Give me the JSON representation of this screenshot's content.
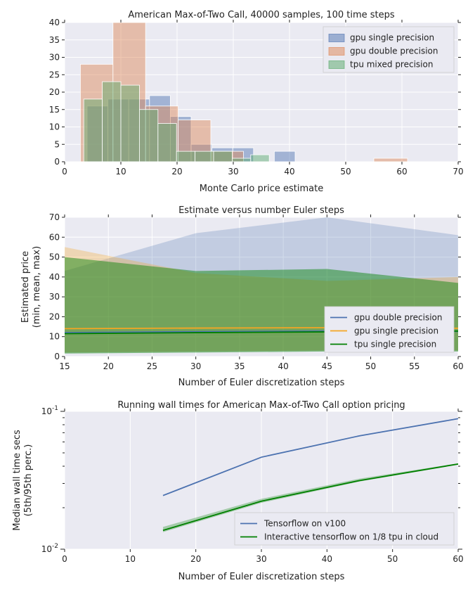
{
  "chart_data": [
    {
      "type": "histogram",
      "title": "American Max-of-Two Call, 40000 samples, 100 time steps",
      "xlabel": "Monte Carlo price estimate",
      "ylabel": "",
      "xlim": [
        0,
        70
      ],
      "ylim": [
        0,
        40
      ],
      "xticks": [
        "0",
        "10",
        "20",
        "30",
        "40",
        "50",
        "60",
        "70"
      ],
      "yticks": [
        "0",
        "5",
        "10",
        "15",
        "20",
        "25",
        "30",
        "35",
        "40"
      ],
      "legend_position": "upper right",
      "series": [
        {
          "name": "gpu single precision",
          "color": "#4c72b0",
          "bins": [
            [
              4,
              7.7,
              16
            ],
            [
              7.7,
              11.4,
              18
            ],
            [
              11.4,
              15.1,
              18
            ],
            [
              15.1,
              18.8,
              19
            ],
            [
              18.8,
              22.5,
              13
            ],
            [
              22.5,
              26.2,
              5
            ],
            [
              26.2,
              29.9,
              4
            ],
            [
              29.9,
              33.6,
              4
            ],
            [
              33.6,
              37.3,
              0
            ],
            [
              37.3,
              41,
              3
            ]
          ]
        },
        {
          "name": "gpu double precision",
          "color": "#dd8452",
          "bins": [
            [
              2.8,
              8.6,
              28
            ],
            [
              8.6,
              14.4,
              40
            ],
            [
              14.4,
              20.2,
              16
            ],
            [
              20.2,
              26,
              12
            ],
            [
              26,
              31.8,
              3
            ],
            [
              31.8,
              37.6,
              0
            ],
            [
              37.6,
              43.4,
              0
            ],
            [
              43.4,
              49.2,
              0
            ],
            [
              49.2,
              55,
              0
            ],
            [
              55,
              61,
              1
            ]
          ]
        },
        {
          "name": "tpu mixed precision",
          "color": "#55a868",
          "bins": [
            [
              3.4,
              6.7,
              18
            ],
            [
              6.7,
              10,
              23
            ],
            [
              10,
              13.3,
              22
            ],
            [
              13.3,
              16.6,
              15
            ],
            [
              16.6,
              19.9,
              11
            ],
            [
              19.9,
              23.2,
              3
            ],
            [
              23.2,
              26.5,
              3
            ],
            [
              26.5,
              29.8,
              3
            ],
            [
              29.8,
              33.1,
              1
            ],
            [
              33.1,
              36.4,
              2
            ]
          ]
        }
      ]
    },
    {
      "type": "area",
      "title": "Estimate versus number Euler steps",
      "xlabel": "Number of Euler discretization steps",
      "ylabel": "Estimated price\n(min, mean, max)",
      "ylabel_lines": [
        "Estimated price",
        "(min, mean, max)"
      ],
      "xlim": [
        15,
        60
      ],
      "ylim": [
        0,
        70
      ],
      "xticks": [
        "15",
        "20",
        "25",
        "30",
        "35",
        "40",
        "45",
        "50",
        "55",
        "60"
      ],
      "yticks": [
        "0",
        "10",
        "20",
        "30",
        "40",
        "50",
        "60",
        "70"
      ],
      "legend_position": "lower right",
      "x": [
        15,
        30,
        45,
        60
      ],
      "series": [
        {
          "name": "gpu double precision",
          "color": "#4c72b0",
          "min": [
            2,
            2.5,
            3,
            3
          ],
          "mean": [
            12,
            12.5,
            12.8,
            12.6
          ],
          "max": [
            43,
            62,
            70,
            61
          ]
        },
        {
          "name": "gpu single precision",
          "color": "#f5a623",
          "min": [
            2,
            2.5,
            3,
            3
          ],
          "mean": [
            14,
            14.3,
            14.5,
            14.2
          ],
          "max": [
            55,
            42,
            38,
            40
          ]
        },
        {
          "name": "tpu single precision",
          "color": "#008000",
          "min": [
            1.5,
            2,
            2.5,
            2.5
          ],
          "mean": [
            11.5,
            12,
            12.4,
            12.8
          ],
          "max": [
            50,
            43,
            44,
            37
          ]
        }
      ]
    },
    {
      "type": "line",
      "title": "Running wall times for American Max-of-Two Call option pricing",
      "xlabel": "Number of Euler discretization steps",
      "ylabel": "Median wall time secs\n(5th/95th perc.)",
      "ylabel_lines": [
        "Median wall time secs",
        "(5th/95th perc.)"
      ],
      "xlim": [
        0,
        60
      ],
      "ylim": [
        0.01,
        0.1
      ],
      "yscale": "log",
      "xticks": [
        "0",
        "10",
        "20",
        "30",
        "40",
        "50",
        "60"
      ],
      "yticks": [
        {
          "base": "10",
          "exp": "-1",
          "value": 0.1
        },
        {
          "base": "10",
          "exp": "-2",
          "value": 0.01
        }
      ],
      "legend_position": "lower right",
      "x": [
        15,
        30,
        45,
        60
      ],
      "series": [
        {
          "name": "Tensorflow on v100",
          "color": "#4c72b0",
          "median": [
            0.0245,
            0.0465,
            0.0665,
            0.0885
          ],
          "p5": [
            0.0243,
            0.0462,
            0.0662,
            0.0882
          ],
          "p95": [
            0.0248,
            0.0468,
            0.0668,
            0.0888
          ]
        },
        {
          "name": "Interactive tensorflow on 1/8 tpu in cloud",
          "color": "#008000",
          "median": [
            0.0137,
            0.0223,
            0.0315,
            0.0415
          ],
          "p5": [
            0.0133,
            0.0217,
            0.031,
            0.041
          ],
          "p95": [
            0.0145,
            0.0232,
            0.0325,
            0.042
          ]
        }
      ]
    }
  ]
}
